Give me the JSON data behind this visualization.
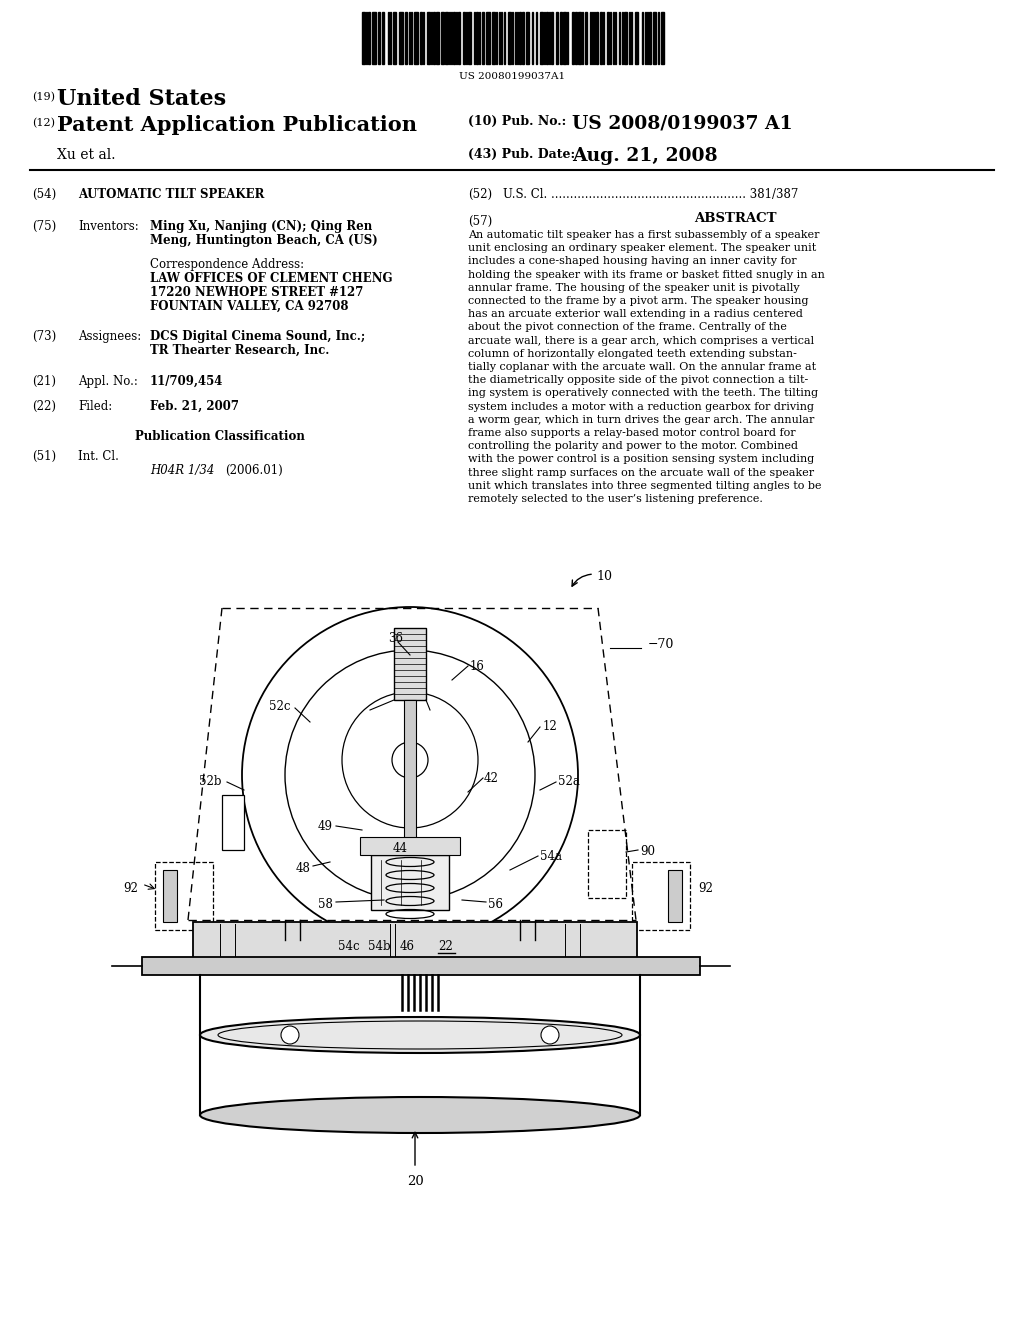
{
  "bg_color": "#ffffff",
  "barcode_text": "US 20080199037A1",
  "title_country": "United States",
  "title_pub": "Patent Application Publication",
  "pub_no": "US 2008/0199037 A1",
  "title_xu": "Xu et al.",
  "pub_date": "Aug. 21, 2008",
  "field_54_val": "AUTOMATIC TILT SPEAKER",
  "field_52_val": "U.S. Cl. .................................................... 381/387",
  "field_57_title": "ABSTRACT",
  "abstract_text": "An automatic tilt speaker has a first subassembly of a speaker unit enclosing an ordinary speaker element. The speaker unit includes a cone-shaped housing having an inner cavity for holding the speaker with its frame or basket fitted snugly in an annular frame. The housing of the speaker unit is pivotally connected to the frame by a pivot arm. The speaker housing has an arcuate exterior wall extending in a radius centered about the pivot connection of the frame. Centrally of the arcuate wall, there is a gear arch, which comprises a vertical column of horizontally elongated teeth extending substantially coplanar with the arcuate wall. On the annular frame at the diametrically opposite side of the pivot connection a tilting system is operatively connected with the teeth. The tilting system includes a motor with a reduction gearbox for driving a worm gear, which in turn drives the gear arch. The annular frame also supports a relay-based motor control board for controlling the polarity and power to the motor. Combined with the power control is a position sensing system including three slight ramp surfaces on the arcuate wall of the speaker unit which translates into three segmented tilting angles to be remotely selected to the user’s listening preference.",
  "inv_name": "Ming Xu, Nanjing (CN); Qing Ren",
  "inv_name2": "Meng, Huntington Beach, CA (US)",
  "corr_label": "Correspondence Address:",
  "corr_line1": "LAW OFFICES OF CLEMENT CHENG",
  "corr_line2": "17220 NEWHOPE STREET #127",
  "corr_line3": "FOUNTAIN VALLEY, CA 92708",
  "asgn1": "DCS Digital Cinema Sound, Inc.;",
  "asgn2": "TR Thearter Research, Inc.",
  "appl_no": "11/709,454",
  "filed_val": "Feb. 21, 2007",
  "pub_class_header": "Publication Classification",
  "field_51_sub": "H04R 1/34",
  "field_51_year": "(2006.01)"
}
